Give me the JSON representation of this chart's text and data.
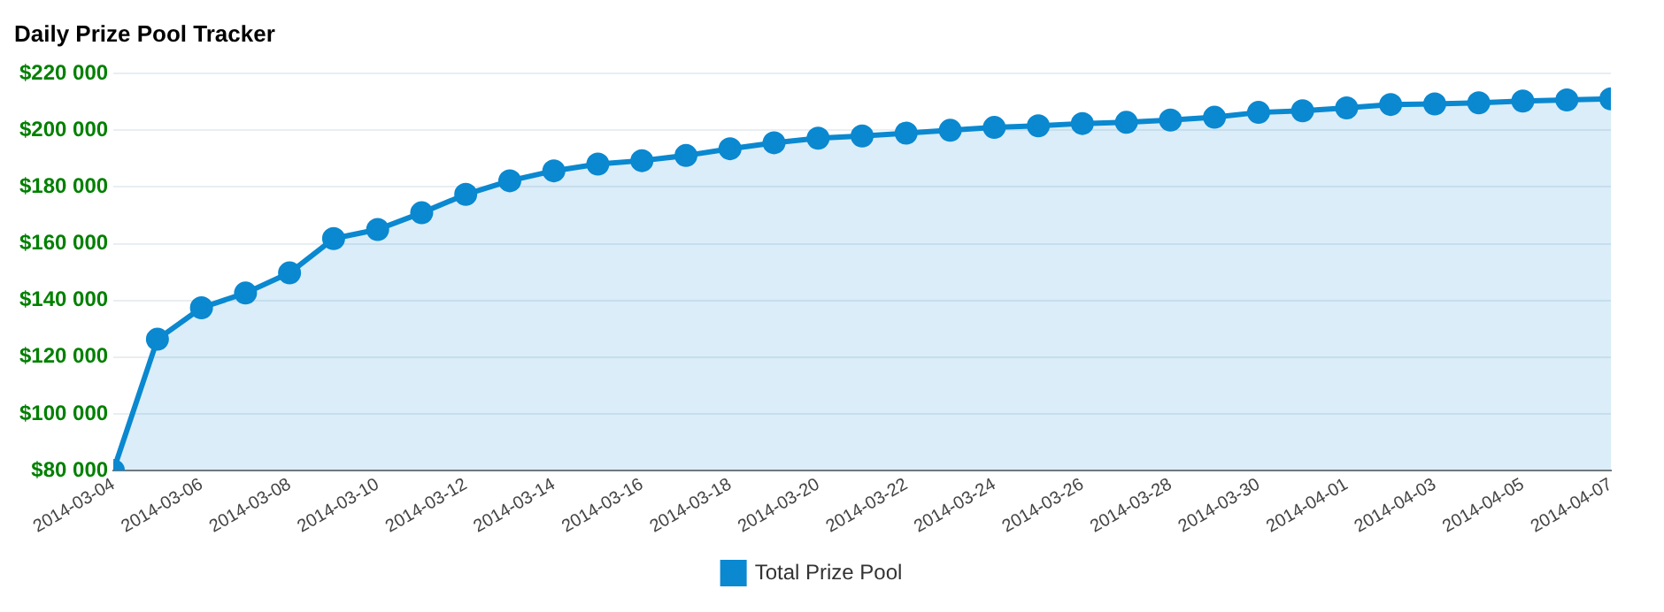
{
  "chart_data": {
    "type": "area",
    "title": "Daily Prize Pool Tracker",
    "x": [
      "2014-03-04",
      "2014-03-05",
      "2014-03-06",
      "2014-03-07",
      "2014-03-08",
      "2014-03-09",
      "2014-03-10",
      "2014-03-11",
      "2014-03-12",
      "2014-03-13",
      "2014-03-14",
      "2014-03-15",
      "2014-03-16",
      "2014-03-17",
      "2014-03-18",
      "2014-03-19",
      "2014-03-20",
      "2014-03-21",
      "2014-03-22",
      "2014-03-23",
      "2014-03-24",
      "2014-03-25",
      "2014-03-26",
      "2014-03-27",
      "2014-03-28",
      "2014-03-29",
      "2014-03-30",
      "2014-03-31",
      "2014-04-01",
      "2014-04-02",
      "2014-04-03",
      "2014-04-04",
      "2014-04-05",
      "2014-04-06",
      "2014-04-07"
    ],
    "series": [
      {
        "name": "Total Prize Pool",
        "color": "#0a88d0",
        "values": [
          80000,
          126300,
          137400,
          142600,
          149700,
          161800,
          165000,
          170900,
          177400,
          182200,
          185700,
          188100,
          189300,
          191100,
          193500,
          195600,
          197200,
          198000,
          199000,
          200000,
          201000,
          201600,
          202400,
          202800,
          203600,
          204600,
          206300,
          206900,
          207900,
          209100,
          209300,
          209700,
          210300,
          210700,
          211100
        ]
      }
    ],
    "xlim": [
      "2014-03-04",
      "2014-04-07"
    ],
    "xticks": [
      "2014-03-04",
      "2014-03-06",
      "2014-03-08",
      "2014-03-10",
      "2014-03-12",
      "2014-03-14",
      "2014-03-16",
      "2014-03-18",
      "2014-03-20",
      "2014-03-22",
      "2014-03-24",
      "2014-03-26",
      "2014-03-28",
      "2014-03-30",
      "2014-04-01",
      "2014-04-03",
      "2014-04-05",
      "2014-04-07"
    ],
    "ylim": [
      80000,
      220000
    ],
    "yticks": [
      {
        "value": 80000,
        "label": "$80 000"
      },
      {
        "value": 100000,
        "label": "$100 000"
      },
      {
        "value": 120000,
        "label": "$120 000"
      },
      {
        "value": 140000,
        "label": "$140 000"
      },
      {
        "value": 160000,
        "label": "$160 000"
      },
      {
        "value": 180000,
        "label": "$180 000"
      },
      {
        "value": 200000,
        "label": "$200 000"
      },
      {
        "value": 220000,
        "label": "$220 000"
      }
    ],
    "grid": "y",
    "legend": "bottom",
    "marker": "circle",
    "line_style": "solid"
  }
}
